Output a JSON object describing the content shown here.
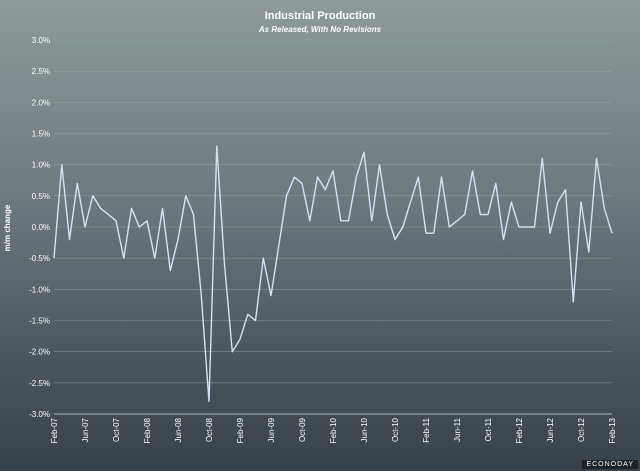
{
  "chart_data": {
    "type": "line",
    "title": "Industrial Production",
    "subtitle": "As Released, With No Revisions",
    "ylabel": "m/m change",
    "xlabel": "",
    "ylim": [
      -3.0,
      3.0
    ],
    "yticks": [
      "3.0%",
      "2.5%",
      "2.0%",
      "1.5%",
      "1.0%",
      "0.5%",
      "0.0%",
      "-0.5%",
      "-1.0%",
      "-1.5%",
      "-2.0%",
      "-2.5%",
      "-3.0%"
    ],
    "ytick_values": [
      3.0,
      2.5,
      2.0,
      1.5,
      1.0,
      0.5,
      0.0,
      -0.5,
      -1.0,
      -1.5,
      -2.0,
      -2.5,
      -3.0
    ],
    "xticks": [
      "Feb-07",
      "Jun-07",
      "Oct-07",
      "Feb-08",
      "Jun-08",
      "Oct-08",
      "Feb-09",
      "Jun-09",
      "Oct-09",
      "Feb-10",
      "Jun-10",
      "Oct-10",
      "Feb-11",
      "Jun-11",
      "Oct-11",
      "Feb-12",
      "Jun-12",
      "Oct-12",
      "Feb-13"
    ],
    "grid": true,
    "series": [
      {
        "values": [
          -0.5,
          1.0,
          -0.2,
          0.7,
          0.0,
          0.5,
          0.3,
          0.2,
          0.1,
          -0.5,
          0.3,
          0.0,
          0.1,
          -0.5,
          0.3,
          -0.7,
          -0.2,
          0.5,
          0.2,
          -1.1,
          -2.8,
          1.3,
          -0.6,
          -2.0,
          -1.8,
          -1.4,
          -1.5,
          -0.5,
          -1.1,
          -0.3,
          0.5,
          0.8,
          0.7,
          0.1,
          0.8,
          0.6,
          0.9,
          0.1,
          0.1,
          0.8,
          1.2,
          0.1,
          1.0,
          0.2,
          -0.2,
          0.0,
          0.4,
          0.8,
          -0.1,
          -0.1,
          0.8,
          0.0,
          0.1,
          0.2,
          0.9,
          0.2,
          0.2,
          0.7,
          -0.2,
          0.4,
          0.0,
          0.0,
          0.0,
          1.1,
          -0.1,
          0.4,
          0.6,
          -1.2,
          0.4,
          -0.4,
          1.1,
          0.3,
          -0.1
        ]
      }
    ],
    "colors": {
      "line": "#d3e3f4",
      "grid": "#aab7b8"
    }
  },
  "branding": {
    "text": "ECONODAY"
  }
}
